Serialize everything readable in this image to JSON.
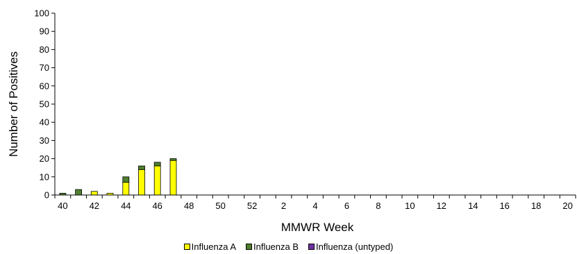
{
  "chart_data": {
    "type": "bar",
    "stacked": true,
    "title": "",
    "xlabel": "MMWR Week",
    "ylabel": "Number of Positives",
    "ylim": [
      0,
      100
    ],
    "yticks": [
      0,
      10,
      20,
      30,
      40,
      50,
      60,
      70,
      80,
      90,
      100
    ],
    "grid": false,
    "legend_position": "bottom",
    "categories": [
      "40",
      "41",
      "42",
      "43",
      "44",
      "45",
      "46",
      "47",
      "48",
      "49",
      "50",
      "51",
      "52",
      "1",
      "2",
      "3",
      "4",
      "5",
      "6",
      "7",
      "8",
      "9",
      "10",
      "11",
      "12",
      "13",
      "14",
      "15",
      "16",
      "17",
      "18",
      "19",
      "20"
    ],
    "xtick_labels": [
      "40",
      "42",
      "44",
      "46",
      "48",
      "50",
      "52",
      "2",
      "4",
      "6",
      "8",
      "10",
      "12",
      "14",
      "16",
      "18",
      "20"
    ],
    "series": [
      {
        "name": "Influenza A",
        "color": "#ffff00",
        "values": [
          0,
          0,
          2,
          1,
          7,
          14,
          16,
          19,
          0,
          0,
          0,
          0,
          0,
          0,
          0,
          0,
          0,
          0,
          0,
          0,
          0,
          0,
          0,
          0,
          0,
          0,
          0,
          0,
          0,
          0,
          0,
          0,
          0
        ]
      },
      {
        "name": "Influenza B",
        "color": "#4f7f2f",
        "values": [
          1,
          3,
          0,
          0,
          3,
          2,
          2,
          1,
          0,
          0,
          0,
          0,
          0,
          0,
          0,
          0,
          0,
          0,
          0,
          0,
          0,
          0,
          0,
          0,
          0,
          0,
          0,
          0,
          0,
          0,
          0,
          0,
          0
        ]
      },
      {
        "name": "Influenza (untyped)",
        "color": "#7030a0",
        "values": [
          0,
          0,
          0,
          0,
          0,
          0,
          0,
          0,
          0,
          0,
          0,
          0,
          0,
          0,
          0,
          0,
          0,
          0,
          0,
          0,
          0,
          0,
          0,
          0,
          0,
          0,
          0,
          0,
          0,
          0,
          0,
          0,
          0
        ]
      }
    ]
  },
  "legend": {
    "items": [
      {
        "label": "Influenza A",
        "color": "#ffff00"
      },
      {
        "label": "Influenza B",
        "color": "#4f7f2f"
      },
      {
        "label": "Influenza (untyped)",
        "color": "#7030a0"
      }
    ]
  }
}
